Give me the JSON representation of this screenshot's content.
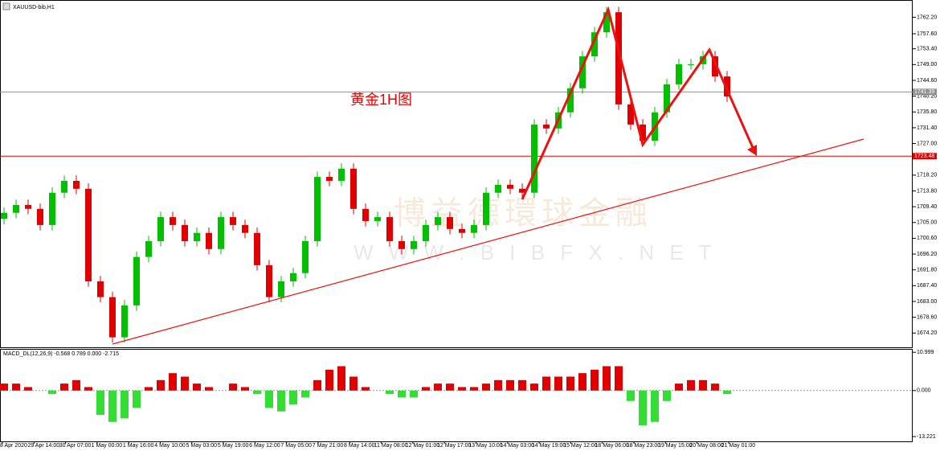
{
  "header": {
    "symbol": "XAUUSD-bib,H1"
  },
  "annotation": "黄金1H图",
  "watermark": {
    "name": "博益德環球金融",
    "url": "W W W . B I B F X . N E T"
  },
  "chart_data": [
    {
      "type": "candlestick",
      "x_labels": [
        "28 Apr 2020",
        "29 Apr 14:00",
        "30 Apr 07:00",
        "1 May 00:00",
        "1 May 16:00",
        "4 May 10:00",
        "5 May 03:00",
        "5 May 19:00",
        "6 May 12:00",
        "7 May 05:00",
        "7 May 21:00",
        "8 May 14:00",
        "11 May 08:00",
        "12 May 01:00",
        "12 May 17:00",
        "13 May 10:00",
        "14 May 03:00",
        "14 May 19:00",
        "15 May 12:00",
        "18 May 06:00",
        "18 May 23:00",
        "19 May 15:00",
        "20 May 08:00",
        "21 May 01:00"
      ],
      "open": [
        1706.0,
        1707.7,
        1709.9,
        1708.8,
        1704.3,
        1713.3,
        1716.6,
        1714.4,
        1688.6,
        1684.2,
        1673.0,
        1681.9,
        1695.4,
        1699.8,
        1706.5,
        1704.3,
        1699.8,
        1702.1,
        1697.6,
        1706.5,
        1704.3,
        1702.1,
        1693.1,
        1684.2,
        1688.6,
        1690.9,
        1699.8,
        1717.7,
        1716.6,
        1720.0,
        1708.8,
        1705.4,
        1706.5,
        1699.8,
        1697.6,
        1699.8,
        1704.3,
        1706.5,
        1703.2,
        1702.1,
        1704.3,
        1713.3,
        1715.5,
        1714.4,
        1713.3,
        1732.3,
        1731.2,
        1735.7,
        1742.4,
        1751.3,
        1758.0,
        1763.6,
        1737.9,
        1732.3,
        1727.8,
        1735.7,
        1743.5,
        1749.1,
        1749.1,
        1751.3,
        1745.7
      ],
      "high": [
        1709.2,
        1711.4,
        1711.4,
        1710.3,
        1714.8,
        1718.1,
        1718.1,
        1715.9,
        1690.1,
        1685.7,
        1683.4,
        1696.9,
        1701.3,
        1708.0,
        1708.0,
        1705.8,
        1703.6,
        1703.6,
        1708.0,
        1708.0,
        1705.8,
        1703.6,
        1694.6,
        1690.1,
        1692.4,
        1701.3,
        1719.2,
        1719.2,
        1721.5,
        1721.5,
        1710.3,
        1708.0,
        1708.0,
        1701.3,
        1701.3,
        1705.8,
        1708.0,
        1708.0,
        1704.7,
        1705.8,
        1714.8,
        1717.0,
        1717.0,
        1715.9,
        1733.8,
        1733.8,
        1737.2,
        1743.9,
        1752.8,
        1759.5,
        1765.1,
        1765.1,
        1739.4,
        1733.8,
        1737.2,
        1745.0,
        1750.6,
        1750.6,
        1752.8,
        1752.8,
        1747.2
      ],
      "low": [
        1704.5,
        1706.2,
        1707.3,
        1702.8,
        1702.8,
        1711.8,
        1712.9,
        1687.1,
        1682.7,
        1671.5,
        1671.5,
        1680.4,
        1693.9,
        1698.3,
        1702.8,
        1698.3,
        1698.3,
        1696.1,
        1696.1,
        1702.8,
        1700.6,
        1691.6,
        1682.7,
        1682.7,
        1687.1,
        1689.4,
        1698.3,
        1715.1,
        1715.1,
        1707.3,
        1703.9,
        1703.9,
        1698.3,
        1696.1,
        1696.1,
        1698.3,
        1702.8,
        1701.7,
        1700.6,
        1700.6,
        1702.8,
        1711.8,
        1712.9,
        1711.8,
        1711.8,
        1729.7,
        1729.7,
        1734.2,
        1740.9,
        1749.8,
        1756.5,
        1736.4,
        1730.8,
        1726.3,
        1726.3,
        1734.2,
        1742.0,
        1747.6,
        1747.6,
        1744.2,
        1738.6
      ],
      "close": [
        1707.7,
        1709.9,
        1708.8,
        1704.3,
        1713.3,
        1716.6,
        1714.4,
        1688.6,
        1684.2,
        1673.0,
        1681.9,
        1695.4,
        1699.8,
        1706.5,
        1704.3,
        1699.8,
        1702.1,
        1697.6,
        1706.5,
        1704.3,
        1702.1,
        1693.1,
        1684.2,
        1688.6,
        1690.9,
        1699.8,
        1717.7,
        1716.6,
        1720.0,
        1708.8,
        1705.4,
        1706.5,
        1699.8,
        1697.6,
        1699.8,
        1704.3,
        1706.5,
        1703.2,
        1702.1,
        1704.3,
        1713.3,
        1715.5,
        1714.4,
        1713.3,
        1732.3,
        1731.2,
        1735.7,
        1742.4,
        1751.3,
        1758.0,
        1763.6,
        1737.9,
        1732.3,
        1727.8,
        1735.7,
        1743.5,
        1749.1,
        1749.1,
        1751.3,
        1745.7,
        1740.1
      ],
      "up_color": "#00c000",
      "down_color": "#e00000",
      "ylim": [
        1670,
        1767
      ],
      "yticks": [
        {
          "value": 1762.2,
          "label": "1762.20"
        },
        {
          "value": 1757.6,
          "label": "1757.60"
        },
        {
          "value": 1753.4,
          "label": "1753.40"
        },
        {
          "value": 1749.0,
          "label": "1749.00"
        },
        {
          "value": 1744.6,
          "label": "1744.60"
        },
        {
          "value": 1740.2,
          "label": "1740.20"
        },
        {
          "value": 1735.8,
          "label": "1735.80"
        },
        {
          "value": 1731.4,
          "label": "1731.40"
        },
        {
          "value": 1727.0,
          "label": "1727.00"
        },
        {
          "value": 1718.2,
          "label": "1718.20"
        },
        {
          "value": 1713.8,
          "label": "1713.80"
        },
        {
          "value": 1709.4,
          "label": "1709.40"
        },
        {
          "value": 1705.0,
          "label": "1705.00"
        },
        {
          "value": 1700.6,
          "label": "1700.60"
        },
        {
          "value": 1696.2,
          "label": "1696.20"
        },
        {
          "value": 1691.8,
          "label": "1691.80"
        },
        {
          "value": 1687.4,
          "label": "1687.40"
        },
        {
          "value": 1683.0,
          "label": "1683.00"
        },
        {
          "value": 1678.6,
          "label": "1678.60"
        },
        {
          "value": 1674.2,
          "label": "1674.20"
        }
      ],
      "price_line": {
        "value": 1741.39,
        "label": "1741.39",
        "color": "#909090"
      },
      "level_line": {
        "value": 1723.48,
        "label": "1723.48",
        "color": "#e00000"
      }
    },
    {
      "type": "bar",
      "title": "MACD_DL(12,26,9) -0.568 0.789 0.000 -2.715",
      "values": [
        2,
        2,
        1,
        0,
        -1,
        2,
        3,
        1,
        -7,
        -9,
        -8,
        -5,
        1,
        3,
        5,
        4,
        2,
        1,
        0,
        2,
        1,
        -1,
        -5,
        -6,
        -4,
        -2,
        3,
        6,
        7,
        4,
        1,
        0,
        -1,
        -2,
        -2,
        1,
        2,
        2,
        1,
        1,
        2,
        3,
        3,
        3,
        2,
        4,
        4,
        4,
        5,
        6,
        7,
        7,
        -3,
        -10,
        -9,
        -3,
        2,
        3,
        3,
        2,
        -1
      ],
      "up_color": "#e00000",
      "down_color": "#33dd33",
      "ylim": [
        -14.6,
        12.2
      ],
      "yticks": [
        10.999,
        {
          "value": 0,
          "label": "0.000"
        },
        -13.221
      ]
    }
  ]
}
